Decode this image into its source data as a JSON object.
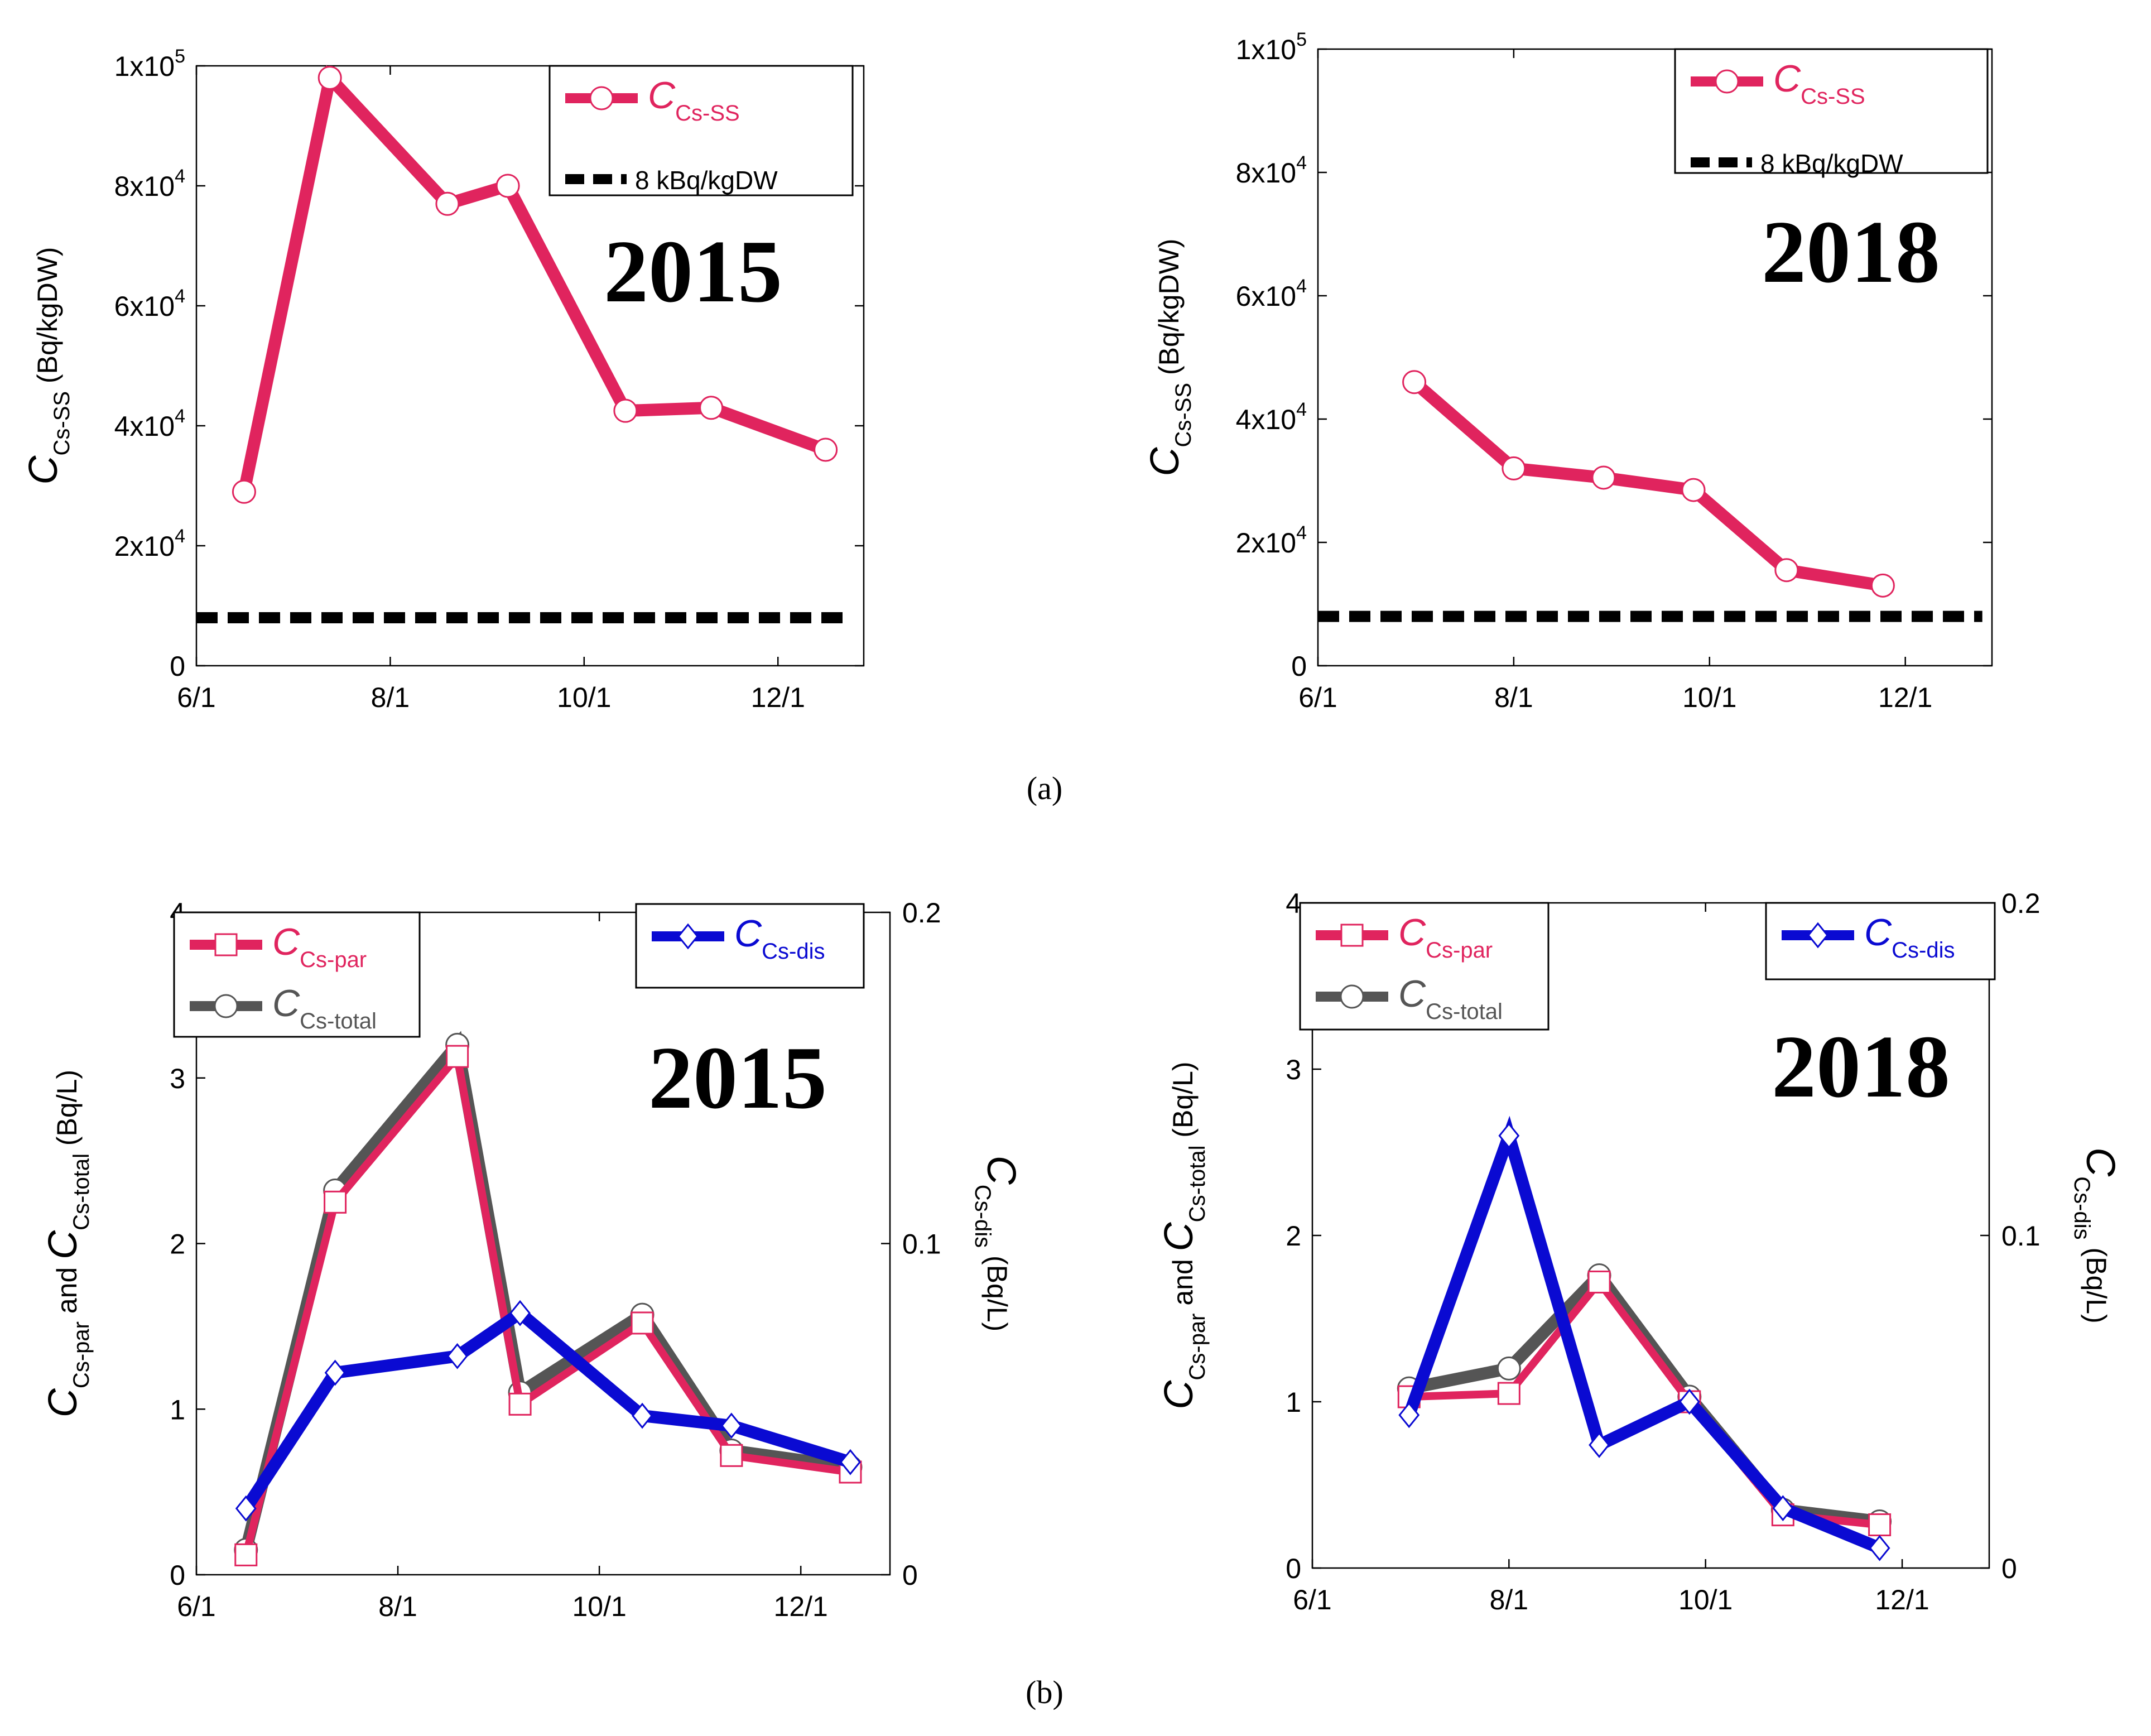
{
  "panel_labels": {
    "a": "(a)",
    "b": "(b)"
  },
  "month_ticks": [
    "6/1",
    "8/1",
    "10/1",
    "12/1"
  ],
  "series_styles": {
    "ss": {
      "color": "#e0245e",
      "marker": "circle"
    },
    "ref": {
      "color": "#000000",
      "marker": "none"
    },
    "par": {
      "color": "#e0245e",
      "marker": "square"
    },
    "total": {
      "color": "#555555",
      "marker": "circle"
    },
    "dis": {
      "color": "#0a0ad2",
      "marker": "diamond"
    }
  },
  "chart_data": [
    {
      "id": "a1",
      "panel": "(a)",
      "type": "line",
      "year_label": "2015",
      "title": "2015",
      "x_axis": {
        "range": [
          0,
          210
        ],
        "ticks": [
          "6/1",
          "8/1",
          "10/1",
          "12/1"
        ],
        "tick_days": [
          0,
          61,
          122,
          183
        ]
      },
      "y_left": {
        "range": [
          0,
          100000
        ],
        "ticks": [
          0,
          20000,
          40000,
          60000,
          80000,
          100000
        ],
        "tick_labels": [
          "0",
          "2x10",
          "4x10",
          "6x10",
          "8x10",
          "1x10"
        ],
        "tick_exponents": [
          "",
          "4",
          "4",
          "4",
          "4",
          "5"
        ],
        "label": {
          "sym": "C",
          "sub": "Cs-SS",
          "unit": "(Bq/kgDW)"
        }
      },
      "legend": [
        {
          "sym": "C",
          "sub": "Cs-SS",
          "key": "ss"
        },
        {
          "text": "8 kBq/kgDW",
          "key": "ref"
        }
      ],
      "series": [
        {
          "name": "C Cs-SS",
          "key": "ss",
          "axis": "left",
          "x": [
            15,
            42,
            79,
            98,
            135,
            162,
            198
          ],
          "y": [
            29000,
            98000,
            77000,
            80000,
            42500,
            43000,
            36000
          ]
        },
        {
          "name": "8 kBq/kgDW",
          "key": "ref",
          "axis": "left",
          "dashed": true,
          "x": [
            0,
            205
          ],
          "y": [
            8000,
            8000
          ]
        }
      ]
    },
    {
      "id": "a2",
      "panel": "(a)",
      "type": "line",
      "year_label": "2018",
      "title": "2018",
      "x_axis": {
        "range": [
          0,
          210
        ],
        "ticks": [
          "6/1",
          "8/1",
          "10/1",
          "12/1"
        ],
        "tick_days": [
          0,
          61,
          122,
          183
        ]
      },
      "y_left": {
        "range": [
          0,
          100000
        ],
        "ticks": [
          0,
          20000,
          40000,
          60000,
          80000,
          100000
        ],
        "tick_labels": [
          "0",
          "2x10",
          "4x10",
          "6x10",
          "8x10",
          "1x10"
        ],
        "tick_exponents": [
          "",
          "4",
          "4",
          "4",
          "4",
          "5"
        ],
        "label": {
          "sym": "C",
          "sub": "Cs-SS",
          "unit": "(Bq/kgDW)"
        }
      },
      "legend": [
        {
          "sym": "C",
          "sub": "Cs-SS",
          "key": "ss"
        },
        {
          "text": "8 kBq/kgDW",
          "key": "ref"
        }
      ],
      "series": [
        {
          "name": "C Cs-SS",
          "key": "ss",
          "axis": "left",
          "x": [
            30,
            61,
            89,
            117,
            146,
            176
          ],
          "y": [
            46000,
            32000,
            30500,
            28500,
            15500,
            13000
          ]
        },
        {
          "name": "8 kBq/kgDW",
          "key": "ref",
          "axis": "left",
          "dashed": true,
          "x": [
            0,
            207
          ],
          "y": [
            8000,
            8000
          ]
        }
      ]
    },
    {
      "id": "b1",
      "panel": "(b)",
      "type": "line",
      "year_label": "2015",
      "title": "2015",
      "x_axis": {
        "range": [
          0,
          210
        ],
        "ticks": [
          "6/1",
          "8/1",
          "10/1",
          "12/1"
        ],
        "tick_days": [
          0,
          61,
          122,
          183
        ]
      },
      "y_left": {
        "range": [
          0,
          4
        ],
        "ticks": [
          0,
          1,
          2,
          3,
          4
        ],
        "tick_labels": [
          "0",
          "1",
          "2",
          "3",
          "4"
        ],
        "label": {
          "sym": "C",
          "sub": "Cs-par",
          "mid": "and",
          "sym2": "C",
          "sub2": "Cs-total",
          "unit": "(Bq/L)"
        }
      },
      "y_right": {
        "range": [
          0,
          0.2
        ],
        "ticks": [
          0,
          0.1,
          0.2
        ],
        "tick_labels": [
          "0",
          "0.1",
          "0.2"
        ],
        "label": {
          "sym": "C",
          "sub": "Cs-dis",
          "unit": "(Bq/L)"
        }
      },
      "legend_left": [
        {
          "sym": "C",
          "sub": "Cs-par",
          "key": "par"
        },
        {
          "sym": "C",
          "sub": "Cs-total",
          "key": "total"
        }
      ],
      "legend_right": [
        {
          "sym": "C",
          "sub": "Cs-dis",
          "key": "dis"
        }
      ],
      "series": [
        {
          "name": "C Cs-total",
          "key": "total",
          "axis": "left",
          "x": [
            15,
            42,
            79,
            98,
            135,
            162,
            198
          ],
          "y": [
            0.15,
            2.32,
            3.2,
            1.1,
            1.57,
            0.75,
            0.65
          ]
        },
        {
          "name": "C Cs-par",
          "key": "par",
          "axis": "left",
          "x": [
            15,
            42,
            79,
            98,
            135,
            162,
            198
          ],
          "y": [
            0.12,
            2.25,
            3.13,
            1.03,
            1.52,
            0.72,
            0.62
          ]
        },
        {
          "name": "C Cs-dis",
          "key": "dis",
          "axis": "right",
          "x": [
            15,
            42,
            79,
            98,
            135,
            162,
            198
          ],
          "y": [
            0.02,
            0.061,
            0.066,
            0.079,
            0.048,
            0.045,
            0.034
          ]
        }
      ]
    },
    {
      "id": "b2",
      "panel": "(b)",
      "type": "line",
      "year_label": "2018",
      "title": "2018",
      "x_axis": {
        "range": [
          0,
          210
        ],
        "ticks": [
          "6/1",
          "8/1",
          "10/1",
          "12/1"
        ],
        "tick_days": [
          0,
          61,
          122,
          183
        ]
      },
      "y_left": {
        "range": [
          0,
          4
        ],
        "ticks": [
          0,
          1,
          2,
          3,
          4
        ],
        "tick_labels": [
          "0",
          "1",
          "2",
          "3",
          "4"
        ],
        "label": {
          "sym": "C",
          "sub": "Cs-par",
          "mid": "and",
          "sym2": "C",
          "sub2": "Cs-total",
          "unit": "(Bq/L)"
        }
      },
      "y_right": {
        "range": [
          0,
          0.2
        ],
        "ticks": [
          0,
          0.1,
          0.2
        ],
        "tick_labels": [
          "0",
          "0.1",
          "0.2"
        ],
        "label": {
          "sym": "C",
          "sub": "Cs-dis",
          "unit": "(Bq/L)"
        }
      },
      "legend_left": [
        {
          "sym": "C",
          "sub": "Cs-par",
          "key": "par"
        },
        {
          "sym": "C",
          "sub": "Cs-total",
          "key": "total"
        }
      ],
      "legend_right": [
        {
          "sym": "C",
          "sub": "Cs-dis",
          "key": "dis"
        }
      ],
      "series": [
        {
          "name": "C Cs-total",
          "key": "total",
          "axis": "left",
          "x": [
            30,
            61,
            89,
            117,
            146,
            176
          ],
          "y": [
            1.08,
            1.2,
            1.76,
            1.03,
            0.35,
            0.28
          ]
        },
        {
          "name": "C Cs-par",
          "key": "par",
          "axis": "left",
          "x": [
            30,
            61,
            89,
            117,
            146,
            176
          ],
          "y": [
            1.03,
            1.05,
            1.72,
            1.0,
            0.32,
            0.26
          ]
        },
        {
          "name": "C Cs-dis",
          "key": "dis",
          "axis": "right",
          "x": [
            30,
            61,
            89,
            117,
            146,
            176
          ],
          "y": [
            0.046,
            0.13,
            0.037,
            0.05,
            0.018,
            0.006
          ]
        }
      ]
    }
  ]
}
